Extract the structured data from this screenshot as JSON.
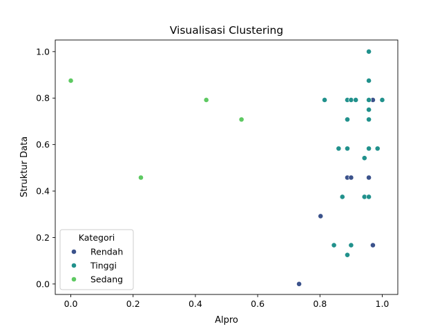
{
  "chart_data": {
    "type": "scatter",
    "title": "Visualisasi Clustering",
    "xlabel": "Alpro",
    "ylabel": "Struktur Data",
    "xlim": [
      -0.05,
      1.05
    ],
    "ylim": [
      -0.045,
      1.05
    ],
    "xticks": [
      "0.0",
      "0.2",
      "0.4",
      "0.6",
      "0.8",
      "1.0"
    ],
    "yticks": [
      "0.0",
      "0.2",
      "0.4",
      "0.6",
      "0.8",
      "1.0"
    ],
    "grid": false,
    "legend": {
      "title": "Kategori",
      "placement": "lower-left"
    },
    "series": [
      {
        "name": "Rendah",
        "color": "#3b528b",
        "points": [
          [
            0.733,
            0.0
          ],
          [
            0.802,
            0.292
          ],
          [
            0.888,
            0.458
          ],
          [
            0.9,
            0.458
          ],
          [
            0.957,
            0.458
          ],
          [
            0.97,
            0.167
          ],
          [
            0.97,
            0.792
          ]
        ]
      },
      {
        "name": "Tinggi",
        "color": "#21918c",
        "points": [
          [
            0.815,
            0.792
          ],
          [
            0.845,
            0.167
          ],
          [
            0.86,
            0.583
          ],
          [
            0.872,
            0.375
          ],
          [
            0.888,
            0.125
          ],
          [
            0.888,
            0.583
          ],
          [
            0.888,
            0.708
          ],
          [
            0.888,
            0.792
          ],
          [
            0.9,
            0.167
          ],
          [
            0.9,
            0.792
          ],
          [
            0.915,
            0.792
          ],
          [
            0.943,
            0.375
          ],
          [
            0.943,
            0.542
          ],
          [
            0.957,
            0.375
          ],
          [
            0.957,
            0.583
          ],
          [
            0.957,
            0.708
          ],
          [
            0.957,
            0.75
          ],
          [
            0.957,
            0.792
          ],
          [
            0.957,
            0.875
          ],
          [
            0.957,
            1.0
          ],
          [
            0.985,
            0.583
          ],
          [
            1.0,
            0.792
          ]
        ]
      },
      {
        "name": "Sedang",
        "color": "#5ec962",
        "points": [
          [
            0.0,
            0.875
          ],
          [
            0.225,
            0.458
          ],
          [
            0.435,
            0.792
          ],
          [
            0.548,
            0.708
          ]
        ]
      }
    ]
  }
}
